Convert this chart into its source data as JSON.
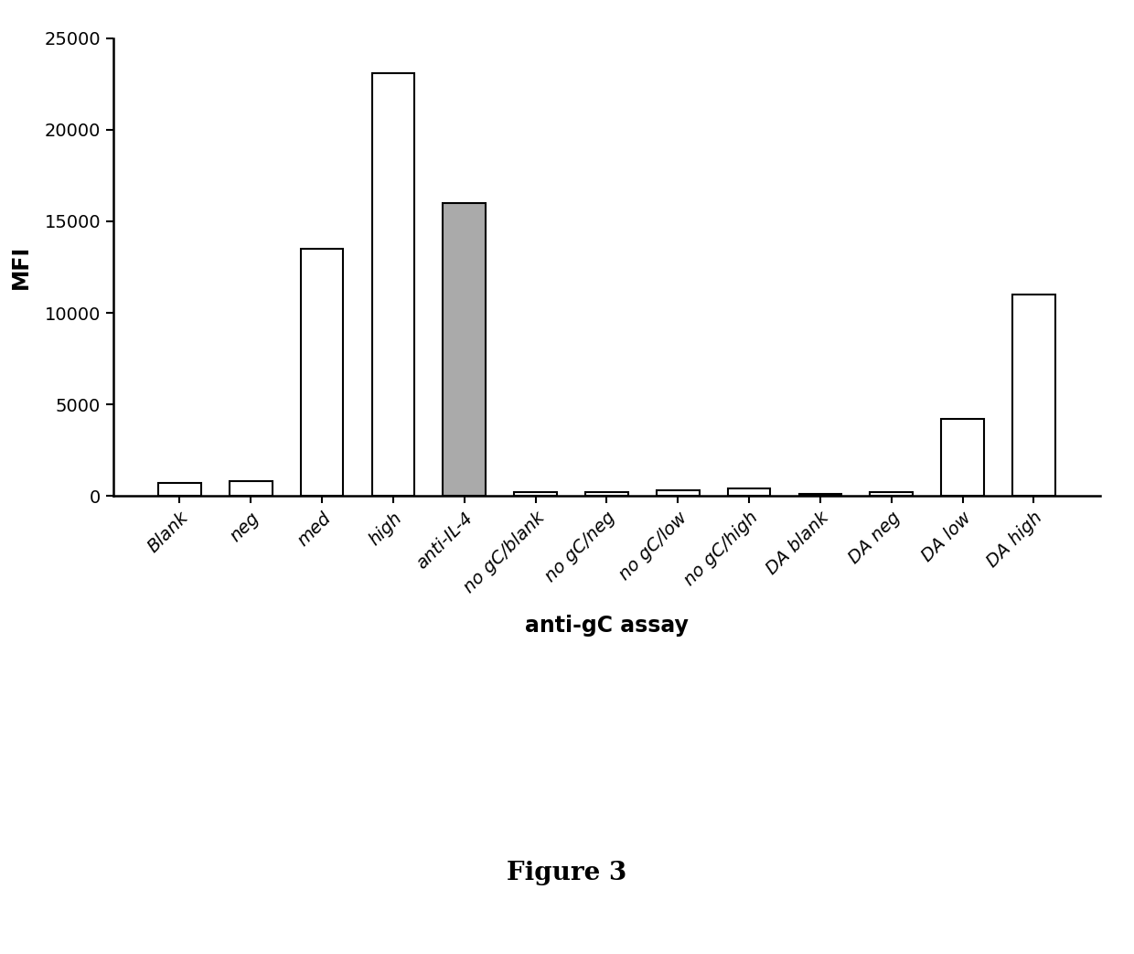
{
  "categories": [
    "Blank",
    "neg",
    "med",
    "high",
    "anti-IL-4",
    "no gC/blank",
    "no gC/neg",
    "no gC/low",
    "no gC/high",
    "DA blank",
    "DA neg",
    "DA low",
    "DA high"
  ],
  "values": [
    700,
    800,
    13500,
    23100,
    16000,
    200,
    200,
    300,
    400,
    100,
    200,
    4200,
    11000
  ],
  "bar_colors": [
    "white",
    "white",
    "white",
    "white",
    "#aaaaaa",
    "white",
    "white",
    "white",
    "white",
    "white",
    "white",
    "white",
    "white"
  ],
  "bar_edgecolors": [
    "black",
    "black",
    "black",
    "black",
    "black",
    "black",
    "black",
    "black",
    "black",
    "black",
    "black",
    "black",
    "black"
  ],
  "ylabel": "MFI",
  "xlabel": "anti-gC assay",
  "ylim": [
    0,
    25000
  ],
  "yticks": [
    0,
    5000,
    10000,
    15000,
    20000,
    25000
  ],
  "figure_caption": "Figure 3",
  "background_color": "#ffffff",
  "bar_width": 0.6,
  "tick_label_fontsize": 14,
  "axis_label_fontsize": 17,
  "caption_fontsize": 20,
  "ylabel_fontsize": 17
}
